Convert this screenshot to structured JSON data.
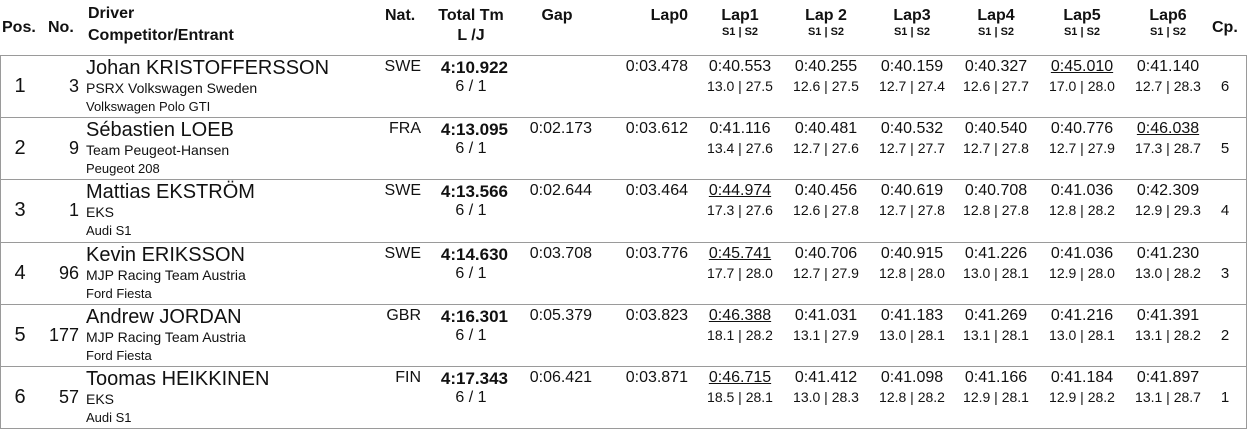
{
  "header": {
    "pos": "Pos.",
    "no": "No.",
    "driver": "Driver",
    "entrant": "Competitor/Entrant",
    "nat": "Nat.",
    "total": "Total Tm",
    "lj": "L /J",
    "gap": "Gap",
    "lap0": "Lap0",
    "laps": [
      {
        "title": "Lap1",
        "sub": "S1 | S2"
      },
      {
        "title": "Lap 2",
        "sub": "S1 | S2"
      },
      {
        "title": "Lap3",
        "sub": "S1 | S2"
      },
      {
        "title": "Lap4",
        "sub": "S1 | S2"
      },
      {
        "title": "Lap5",
        "sub": "S1 | S2"
      },
      {
        "title": "Lap6",
        "sub": "S1 | S2"
      }
    ],
    "cp": "Cp."
  },
  "rows": [
    {
      "pos": 1,
      "no": 3,
      "driver": "Johan KRISTOFFERSSON",
      "entrant": "PSRX Volkswagen Sweden",
      "car": "Volkswagen Polo GTI",
      "nat": "SWE",
      "total": "4:10.922",
      "lj": "6 / 1",
      "lap0": "0:03.478",
      "laps": [
        {
          "time": "0:40.553",
          "splits": "13.0 | 27.5"
        },
        {
          "time": "0:40.255",
          "splits": "12.6 | 27.5"
        },
        {
          "time": "0:40.159",
          "splits": "12.7 | 27.4"
        },
        {
          "time": "0:40.327",
          "splits": "12.6 | 27.7"
        },
        {
          "time": "0:45.010",
          "splits": "17.0 | 28.0",
          "underlined": true
        },
        {
          "time": "0:41.140",
          "splits": "12.7 | 28.3"
        }
      ],
      "cp": 6
    },
    {
      "pos": 2,
      "no": 9,
      "driver": "Sébastien LOEB",
      "entrant": "Team Peugeot-Hansen",
      "car": "Peugeot 208",
      "nat": "FRA",
      "total": "4:13.095",
      "lj": "6 / 1",
      "gap": "0:02.173",
      "lap0": "0:03.612",
      "laps": [
        {
          "time": "0:41.116",
          "splits": "13.4 | 27.6"
        },
        {
          "time": "0:40.481",
          "splits": "12.7 | 27.6"
        },
        {
          "time": "0:40.532",
          "splits": "12.7 | 27.7"
        },
        {
          "time": "0:40.540",
          "splits": "12.7 | 27.8"
        },
        {
          "time": "0:40.776",
          "splits": "12.7 | 27.9"
        },
        {
          "time": "0:46.038",
          "splits": "17.3 | 28.7",
          "underlined": true
        }
      ],
      "cp": 5
    },
    {
      "pos": 3,
      "no": 1,
      "driver": "Mattias EKSTRÖM",
      "entrant": "EKS",
      "car": "Audi S1",
      "nat": "SWE",
      "total": "4:13.566",
      "lj": "6 / 1",
      "gap": "0:02.644",
      "lap0": "0:03.464",
      "laps": [
        {
          "time": "0:44.974",
          "splits": "17.3 | 27.6",
          "underlined": true
        },
        {
          "time": "0:40.456",
          "splits": "12.6 | 27.8"
        },
        {
          "time": "0:40.619",
          "splits": "12.7 | 27.8"
        },
        {
          "time": "0:40.708",
          "splits": "12.8 | 27.8"
        },
        {
          "time": "0:41.036",
          "splits": "12.8 | 28.2"
        },
        {
          "time": "0:42.309",
          "splits": "12.9 | 29.3"
        }
      ],
      "cp": 4
    },
    {
      "pos": 4,
      "no": 96,
      "driver": "Kevin ERIKSSON",
      "entrant": "MJP Racing Team Austria",
      "car": "Ford Fiesta",
      "nat": "SWE",
      "total": "4:14.630",
      "lj": "6 / 1",
      "gap": "0:03.708",
      "lap0": "0:03.776",
      "laps": [
        {
          "time": "0:45.741",
          "splits": "17.7 | 28.0",
          "underlined": true
        },
        {
          "time": "0:40.706",
          "splits": "12.7 | 27.9"
        },
        {
          "time": "0:40.915",
          "splits": "12.8 | 28.0"
        },
        {
          "time": "0:41.226",
          "splits": "13.0 | 28.1"
        },
        {
          "time": "0:41.036",
          "splits": "12.9 | 28.0"
        },
        {
          "time": "0:41.230",
          "splits": "13.0 | 28.2"
        }
      ],
      "cp": 3
    },
    {
      "pos": 5,
      "no": 177,
      "driver": "Andrew JORDAN",
      "entrant": "MJP Racing Team Austria",
      "car": "Ford Fiesta",
      "nat": "GBR",
      "total": "4:16.301",
      "lj": "6 / 1",
      "gap": "0:05.379",
      "lap0": "0:03.823",
      "laps": [
        {
          "time": "0:46.388",
          "splits": "18.1 | 28.2",
          "underlined": true
        },
        {
          "time": "0:41.031",
          "splits": "13.1 | 27.9"
        },
        {
          "time": "0:41.183",
          "splits": "13.0 | 28.1"
        },
        {
          "time": "0:41.269",
          "splits": "13.1 | 28.1"
        },
        {
          "time": "0:41.216",
          "splits": "13.0 | 28.1"
        },
        {
          "time": "0:41.391",
          "splits": "13.1 | 28.2"
        }
      ],
      "cp": 2
    },
    {
      "pos": 6,
      "no": 57,
      "driver": "Toomas HEIKKINEN",
      "entrant": "EKS",
      "car": "Audi S1",
      "nat": "FIN",
      "total": "4:17.343",
      "lj": "6 / 1",
      "gap": "0:06.421",
      "lap0": "0:03.871",
      "laps": [
        {
          "time": "0:46.715",
          "splits": "18.5 | 28.1",
          "underlined": true
        },
        {
          "time": "0:41.412",
          "splits": "13.0 | 28.3"
        },
        {
          "time": "0:41.098",
          "splits": "12.8 | 28.2"
        },
        {
          "time": "0:41.166",
          "splits": "12.9 | 28.1"
        },
        {
          "time": "0:41.184",
          "splits": "12.9 | 28.2"
        },
        {
          "time": "0:41.897",
          "splits": "13.1 | 28.7"
        }
      ],
      "cp": 1
    }
  ]
}
